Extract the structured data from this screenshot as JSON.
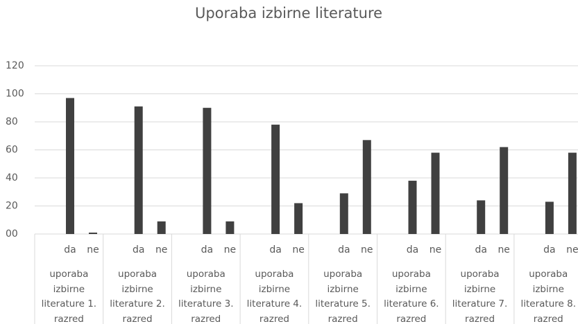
{
  "chart_data": {
    "type": "bar",
    "title": "Uporaba izbirne literature",
    "categories": [
      "uporaba izbirne literature 1. razred",
      "uporaba izbirne literature 2. razred",
      "uporaba izbirne literature 3. razred",
      "uporaba izbirne literature 4. razred",
      "uporaba izbirne literature 5. razred",
      "uporaba izbirne literature 6. razred",
      "uporaba izbirne literature 7. razred",
      "uporaba izbirne literature 8. razred"
    ],
    "series": [
      {
        "name": "da",
        "color": "#404040",
        "values": [
          97,
          91,
          90,
          78,
          29,
          38,
          24,
          23
        ]
      },
      {
        "name": "ne",
        "color": "#404040",
        "values": [
          1,
          9,
          9,
          22,
          67,
          58,
          62,
          58
        ]
      }
    ],
    "ylim": [
      0,
      120
    ],
    "yticks": [
      {
        "value": 0,
        "label": "00"
      },
      20,
      40,
      60,
      80,
      100,
      120
    ],
    "grid": true
  }
}
